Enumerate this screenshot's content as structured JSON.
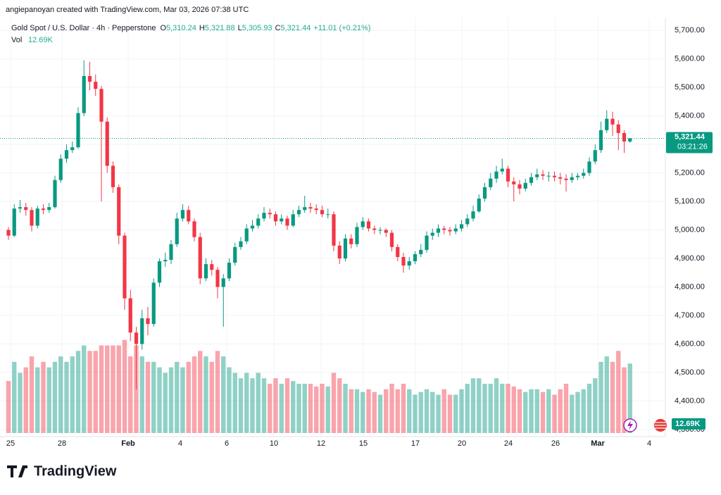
{
  "header": {
    "credit": "angiepanoyan created with TradingView.com, Mar 03, 2026 07:38 UTC",
    "symbol": "Gold Spot / U.S. Dollar · 4h · Pepperstone",
    "ohlc": [
      {
        "key": "O",
        "value": "5,310.24"
      },
      {
        "key": "H",
        "value": "5,321.88"
      },
      {
        "key": "L",
        "value": "5,305.93"
      },
      {
        "key": "C",
        "value": "5,321.44"
      }
    ],
    "change": "+11.01 (+0.21%)",
    "vol_label": "Vol",
    "vol_value": "12.69K"
  },
  "chart_data": {
    "type": "candlestick",
    "up_color": "#089981",
    "down_color": "#f23645",
    "ylim": [
      4275,
      5745
    ],
    "yticks": [
      {
        "value": 4300,
        "label": "4,300.00"
      },
      {
        "value": 4400,
        "label": "4,400.00"
      },
      {
        "value": 4500,
        "label": "4,500.00"
      },
      {
        "value": 4600,
        "label": "4,600.00"
      },
      {
        "value": 4700,
        "label": "4,700.00"
      },
      {
        "value": 4800,
        "label": "4,800.00"
      },
      {
        "value": 4900,
        "label": "4,900.00"
      },
      {
        "value": 5000,
        "label": "5,000.00"
      },
      {
        "value": 5100,
        "label": "5,100.00"
      },
      {
        "value": 5200,
        "label": "5,200.00"
      },
      {
        "value": 5300,
        "label": "5,300.00"
      },
      {
        "value": 5400,
        "label": "5,400.00"
      },
      {
        "value": 5500,
        "label": "5,500.00"
      },
      {
        "value": 5600,
        "label": "5,600.00"
      },
      {
        "value": 5700,
        "label": "5,700.00"
      }
    ],
    "volume_lim": [
      0,
      18
    ],
    "x_labels": [
      "25",
      "28",
      "Feb",
      "4",
      "6",
      "10",
      "12",
      "15",
      "17",
      "20",
      "24",
      "26",
      "Mar",
      "4"
    ],
    "last_price": {
      "value": 5321.44,
      "label": "5,321.44"
    },
    "countdown": "03:21:26",
    "last_volume": {
      "value": 12.69,
      "label": "12.69K"
    },
    "candles": [
      [
        5000,
        5010,
        4965,
        4980,
        9.5
      ],
      [
        4980,
        5090,
        4975,
        5075,
        13
      ],
      [
        5075,
        5105,
        5060,
        5080,
        11
      ],
      [
        5080,
        5095,
        5050,
        5070,
        12
      ],
      [
        5070,
        5080,
        4995,
        5015,
        14
      ],
      [
        5015,
        5085,
        5005,
        5075,
        12
      ],
      [
        5075,
        5090,
        5055,
        5070,
        13
      ],
      [
        5070,
        5095,
        5060,
        5080,
        12
      ],
      [
        5080,
        5190,
        5075,
        5175,
        13
      ],
      [
        5175,
        5265,
        5165,
        5250,
        14
      ],
      [
        5250,
        5300,
        5235,
        5280,
        13
      ],
      [
        5280,
        5310,
        5270,
        5290,
        14
      ],
      [
        5290,
        5430,
        5285,
        5410,
        15
      ],
      [
        5410,
        5595,
        5400,
        5540,
        16
      ],
      [
        5540,
        5590,
        5490,
        5520,
        15
      ],
      [
        5520,
        5545,
        5470,
        5495,
        15
      ],
      [
        5495,
        5505,
        5100,
        5380,
        16
      ],
      [
        5380,
        5395,
        5200,
        5225,
        16
      ],
      [
        5225,
        5240,
        5130,
        5150,
        16
      ],
      [
        5150,
        5160,
        4950,
        4980,
        16
      ],
      [
        4980,
        4990,
        4720,
        4760,
        17
      ],
      [
        4760,
        4790,
        4610,
        4640,
        14
      ],
      [
        4640,
        4660,
        4440,
        4600,
        16
      ],
      [
        4600,
        4720,
        4580,
        4690,
        14
      ],
      [
        4690,
        4730,
        4630,
        4670,
        13
      ],
      [
        4670,
        4830,
        4660,
        4815,
        13
      ],
      [
        4815,
        4900,
        4800,
        4890,
        12
      ],
      [
        4890,
        4920,
        4870,
        4895,
        11
      ],
      [
        4895,
        4965,
        4880,
        4950,
        12
      ],
      [
        4950,
        5060,
        4940,
        5040,
        13
      ],
      [
        5040,
        5090,
        5030,
        5070,
        12
      ],
      [
        5070,
        5085,
        5020,
        5030,
        13
      ],
      [
        5030,
        5040,
        4960,
        4975,
        14
      ],
      [
        4975,
        4990,
        4810,
        4830,
        15
      ],
      [
        4830,
        4900,
        4820,
        4880,
        14
      ],
      [
        4880,
        4895,
        4840,
        4860,
        13
      ],
      [
        4860,
        4870,
        4760,
        4800,
        15
      ],
      [
        4800,
        4845,
        4660,
        4830,
        14
      ],
      [
        4830,
        4900,
        4820,
        4885,
        12
      ],
      [
        4885,
        4955,
        4875,
        4940,
        11
      ],
      [
        4940,
        4975,
        4930,
        4960,
        10
      ],
      [
        4960,
        5020,
        4950,
        5005,
        11
      ],
      [
        5005,
        5035,
        4995,
        5015,
        10
      ],
      [
        5015,
        5055,
        5005,
        5040,
        11
      ],
      [
        5040,
        5080,
        5030,
        5060,
        10
      ],
      [
        5060,
        5075,
        5040,
        5055,
        9
      ],
      [
        5055,
        5065,
        5015,
        5030,
        10
      ],
      [
        5030,
        5055,
        5020,
        5040,
        9
      ],
      [
        5040,
        5050,
        5000,
        5015,
        10
      ],
      [
        5015,
        5070,
        5010,
        5055,
        9.5
      ],
      [
        5055,
        5085,
        5045,
        5070,
        9
      ],
      [
        5070,
        5120,
        5060,
        5080,
        9
      ],
      [
        5080,
        5095,
        5060,
        5075,
        9
      ],
      [
        5075,
        5090,
        5055,
        5070,
        8.5
      ],
      [
        5070,
        5085,
        5045,
        5055,
        9
      ],
      [
        5055,
        5075,
        5040,
        5055,
        8.5
      ],
      [
        5055,
        5065,
        4925,
        4945,
        11
      ],
      [
        4945,
        4960,
        4880,
        4900,
        10
      ],
      [
        4900,
        4985,
        4890,
        4970,
        9
      ],
      [
        4970,
        4985,
        4935,
        4950,
        8
      ],
      [
        4950,
        5025,
        4940,
        5010,
        8
      ],
      [
        5010,
        5045,
        5000,
        5030,
        7.5
      ],
      [
        5030,
        5040,
        4995,
        5005,
        8
      ],
      [
        5005,
        5015,
        4985,
        5000,
        7.5
      ],
      [
        5000,
        5010,
        4985,
        5000,
        7
      ],
      [
        5000,
        5005,
        4975,
        4990,
        8
      ],
      [
        4990,
        5000,
        4925,
        4940,
        9
      ],
      [
        4940,
        4950,
        4890,
        4905,
        8
      ],
      [
        4905,
        4920,
        4850,
        4875,
        9
      ],
      [
        4875,
        4905,
        4860,
        4890,
        8
      ],
      [
        4890,
        4925,
        4880,
        4915,
        7
      ],
      [
        4915,
        4950,
        4905,
        4930,
        7.5
      ],
      [
        4930,
        4995,
        4920,
        4980,
        8
      ],
      [
        4980,
        5005,
        4965,
        4990,
        7.5
      ],
      [
        4990,
        5020,
        4975,
        5005,
        7
      ],
      [
        5005,
        5015,
        4985,
        5000,
        8
      ],
      [
        5000,
        5010,
        4980,
        4995,
        7
      ],
      [
        4995,
        5020,
        4985,
        5005,
        7
      ],
      [
        5005,
        5035,
        4995,
        5020,
        8
      ],
      [
        5020,
        5055,
        5010,
        5040,
        9
      ],
      [
        5040,
        5085,
        5030,
        5065,
        10
      ],
      [
        5065,
        5125,
        5060,
        5110,
        10
      ],
      [
        5110,
        5165,
        5100,
        5150,
        9
      ],
      [
        5150,
        5200,
        5140,
        5180,
        9
      ],
      [
        5180,
        5225,
        5165,
        5205,
        10
      ],
      [
        5205,
        5250,
        5195,
        5215,
        9
      ],
      [
        5215,
        5225,
        5150,
        5170,
        9
      ],
      [
        5170,
        5185,
        5100,
        5160,
        8.5
      ],
      [
        5160,
        5175,
        5125,
        5145,
        8
      ],
      [
        5145,
        5180,
        5135,
        5165,
        7.5
      ],
      [
        5165,
        5200,
        5155,
        5185,
        8
      ],
      [
        5185,
        5215,
        5175,
        5195,
        8
      ],
      [
        5195,
        5210,
        5175,
        5190,
        7.5
      ],
      [
        5190,
        5205,
        5170,
        5190,
        8
      ],
      [
        5190,
        5205,
        5170,
        5185,
        7
      ],
      [
        5185,
        5200,
        5160,
        5180,
        8
      ],
      [
        5180,
        5195,
        5135,
        5175,
        9
      ],
      [
        5175,
        5200,
        5165,
        5185,
        7
      ],
      [
        5185,
        5200,
        5175,
        5190,
        7.5
      ],
      [
        5190,
        5215,
        5180,
        5200,
        8
      ],
      [
        5200,
        5255,
        5190,
        5240,
        9
      ],
      [
        5240,
        5300,
        5230,
        5280,
        10
      ],
      [
        5280,
        5380,
        5270,
        5350,
        13
      ],
      [
        5350,
        5420,
        5340,
        5390,
        14
      ],
      [
        5390,
        5415,
        5330,
        5370,
        13
      ],
      [
        5370,
        5385,
        5280,
        5340,
        15
      ],
      [
        5340,
        5350,
        5270,
        5310.24,
        12
      ],
      [
        5310.24,
        5321.88,
        5305.93,
        5321.44,
        12.69
      ]
    ]
  },
  "footer": {
    "brand": "TradingView"
  }
}
